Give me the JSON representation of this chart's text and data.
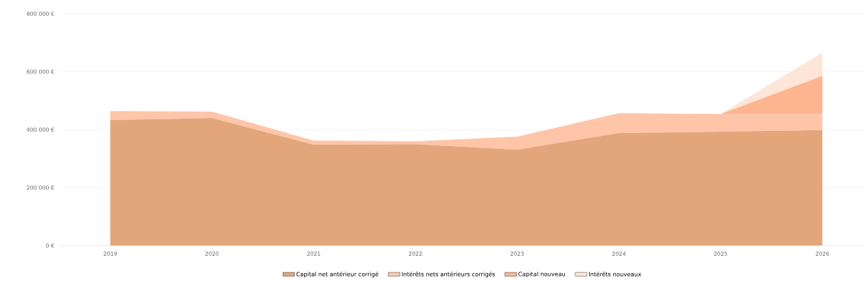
{
  "chart_data": {
    "type": "area",
    "stacked": true,
    "categories": [
      "2019",
      "2020",
      "2021",
      "2022",
      "2023",
      "2024",
      "2025",
      "2026"
    ],
    "series": [
      {
        "name": "Capital net antérieur corrigé",
        "color": "#e3a67b",
        "values": [
          433000,
          440000,
          348000,
          350000,
          331000,
          388000,
          393000,
          398000
        ]
      },
      {
        "name": "Intérêts nets antérieurs corrigés",
        "color": "#fec5a8",
        "values": [
          31000,
          22000,
          14000,
          10000,
          45000,
          69000,
          61000,
          56000
        ]
      },
      {
        "name": "Capital nouveau",
        "color": "#fdb58f",
        "values": [
          0,
          0,
          0,
          0,
          0,
          0,
          0,
          131000
        ]
      },
      {
        "name": "Intérêts nouveaux",
        "color": "#fde5d8",
        "values": [
          0,
          0,
          0,
          0,
          0,
          0,
          0,
          80000
        ]
      }
    ],
    "ylim": [
      0,
      800000
    ],
    "yticks": [
      {
        "value": 0,
        "label": "0 €"
      },
      {
        "value": 200000,
        "label": "200 000 €"
      },
      {
        "value": 400000,
        "label": "400 000 €"
      },
      {
        "value": 600000,
        "label": "600 000 €"
      },
      {
        "value": 800000,
        "label": "800 000 €"
      }
    ],
    "grid": "y",
    "legend": "bottom"
  }
}
